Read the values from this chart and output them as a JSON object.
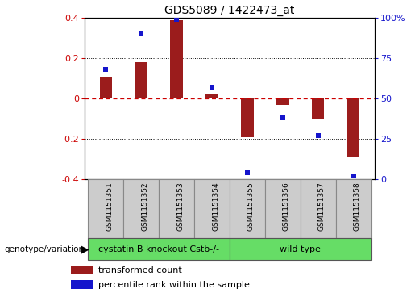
{
  "title": "GDS5089 / 1422473_at",
  "samples": [
    "GSM1151351",
    "GSM1151352",
    "GSM1151353",
    "GSM1151354",
    "GSM1151355",
    "GSM1151356",
    "GSM1151357",
    "GSM1151358"
  ],
  "bar_values": [
    0.11,
    0.18,
    0.39,
    0.02,
    -0.19,
    -0.03,
    -0.1,
    -0.29
  ],
  "scatter_pct": [
    68,
    90,
    99,
    57,
    4,
    38,
    27,
    2
  ],
  "bar_color": "#9B1C1C",
  "scatter_color": "#1515CC",
  "ylim": [
    -0.4,
    0.4
  ],
  "right_ylim": [
    0,
    100
  ],
  "right_yticks": [
    0,
    25,
    50,
    75,
    100
  ],
  "right_yticklabels": [
    "0",
    "25",
    "50",
    "75",
    "100%"
  ],
  "left_yticks": [
    -0.4,
    -0.2,
    0.0,
    0.2,
    0.4
  ],
  "left_yticklabels": [
    "-0.4",
    "-0.2",
    "0",
    "0.2",
    "0.4"
  ],
  "hline_color": "#CC0000",
  "dotted_color": "#000000",
  "group1_label": "cystatin B knockout Cstb-/-",
  "group2_label": "wild type",
  "group_color": "#66DD66",
  "row_label": "genotype/variation",
  "legend1_label": "transformed count",
  "legend2_label": "percentile rank within the sample",
  "title_fontsize": 10,
  "tick_fontsize": 8,
  "label_fontsize": 8,
  "bar_width": 0.35
}
